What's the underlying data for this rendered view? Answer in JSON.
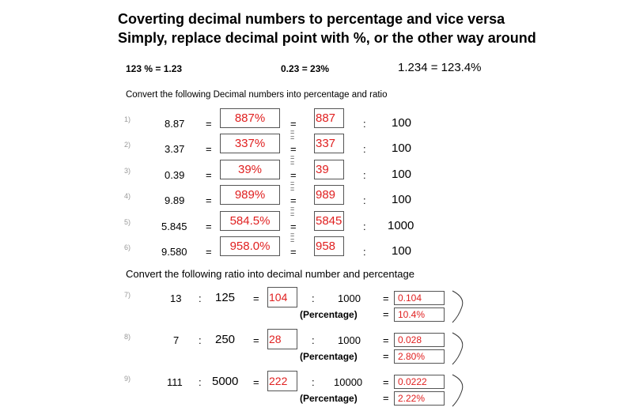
{
  "header": {
    "title_line1": "Coverting decimal numbers to percentage and vice versa",
    "title_line2": "Simply, replace decimal point with %, or the other way around"
  },
  "examples": [
    "123 % = 1.23",
    "0.23 = 23%",
    "1.234 = 123.4%"
  ],
  "section1": {
    "instruction": "Convert the following Decimal numbers into percentage and ratio",
    "rows": [
      {
        "index": "1)",
        "decimal": "8.87",
        "percent": "887%",
        "numerator": "887",
        "denominator": "100"
      },
      {
        "index": "2)",
        "decimal": "3.37",
        "percent": "337%",
        "numerator": "337",
        "denominator": "100"
      },
      {
        "index": "3)",
        "decimal": "0.39",
        "percent": "39%",
        "numerator": "39",
        "denominator": "100"
      },
      {
        "index": "4)",
        "decimal": "9.89",
        "percent": "989%",
        "numerator": "989",
        "denominator": "100"
      },
      {
        "index": "5)",
        "decimal": "5.845",
        "percent": "584.5%",
        "numerator": "5845",
        "denominator": "1000"
      },
      {
        "index": "6)",
        "decimal": "9.580",
        "percent": "958.0%",
        "numerator": "958",
        "denominator": "100"
      }
    ]
  },
  "section2": {
    "instruction": "Convert the following ratio into decimal number and percentage",
    "percentage_label": "(Percentage)",
    "rows": [
      {
        "index": "7)",
        "a": "13",
        "b": "125",
        "numerator": "104",
        "denominator": "1000",
        "decimal": "0.104",
        "percent": "10.4%"
      },
      {
        "index": "8)",
        "a": "7",
        "b": "250",
        "numerator": "28",
        "denominator": "1000",
        "decimal": "0.028",
        "percent": "2.80%"
      },
      {
        "index": "9)",
        "a": "111",
        "b": "5000",
        "numerator": "222",
        "denominator": "10000",
        "decimal": "0.0222",
        "percent": "2.22%"
      }
    ]
  },
  "symbols": {
    "equals": "=",
    "colon": ":"
  },
  "colors": {
    "answer": "#e02020",
    "box_border": "#555555",
    "index": "#999999"
  }
}
